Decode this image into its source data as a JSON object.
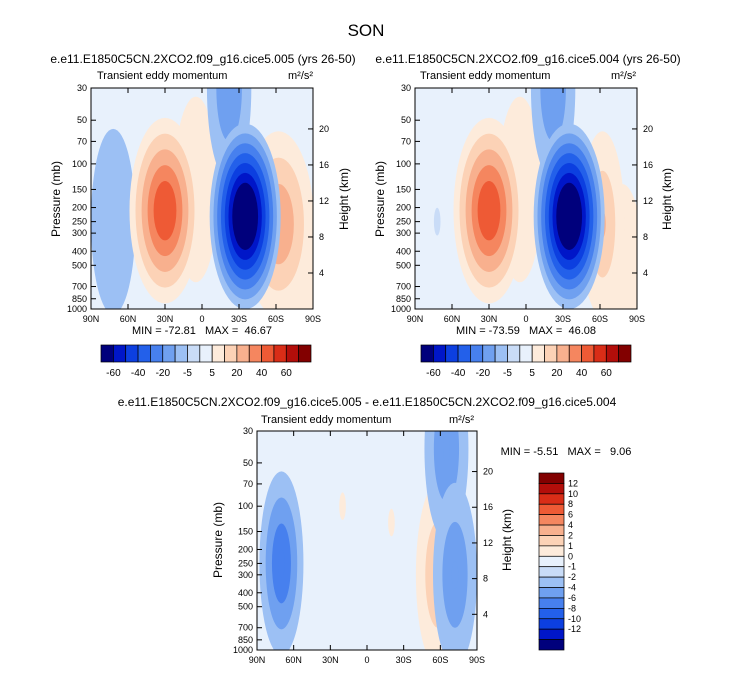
{
  "figure": {
    "season": "SON"
  },
  "chart_data": [
    {
      "type": "heatmap",
      "panel_title": "e.e11.E1850C5CN.2XCO2.f09_g16.cice5.005 (yrs 26-50)",
      "left_label": "Transient eddy momentum",
      "units": "m²/s²",
      "ylabel": "Pressure (mb)",
      "ylabel_right": "Height (km)",
      "xticks": [
        "90N",
        "60N",
        "30N",
        "0",
        "30S",
        "60S",
        "90S"
      ],
      "yticks": [
        "30",
        "50",
        "70",
        "100",
        "150",
        "200",
        "250",
        "300",
        "400",
        "500",
        "700",
        "850",
        "1000"
      ],
      "height_ticks": [
        "20",
        "16",
        "12",
        "8",
        "4"
      ],
      "stats": "MIN = -72.81   MAX =  46.67",
      "min": -72.81,
      "max": 46.67,
      "features": [
        {
          "lat": 30,
          "p": 210,
          "value": 44
        },
        {
          "lat": 5,
          "p": 150,
          "value": 8
        },
        {
          "lat": -35,
          "p": 230,
          "value": -72
        },
        {
          "lat": -62,
          "p": 260,
          "value": 22
        },
        {
          "lat": -78,
          "p": 600,
          "value": 6
        },
        {
          "lat": 72,
          "p": 250,
          "value": -8
        },
        {
          "lat": -22,
          "p": 30,
          "value": -20
        }
      ]
    },
    {
      "type": "heatmap",
      "panel_title": "e.e11.E1850C5CN.2XCO2.f09_g16.cice5.004 (yrs 26-50)",
      "left_label": "Transient eddy momentum",
      "units": "m²/s²",
      "ylabel": "Pressure (mb)",
      "ylabel_right": "Height (km)",
      "xticks": [
        "90N",
        "60N",
        "30N",
        "0",
        "30S",
        "60S",
        "90S"
      ],
      "yticks": [
        "30",
        "50",
        "70",
        "100",
        "150",
        "200",
        "250",
        "300",
        "400",
        "500",
        "700",
        "850",
        "1000"
      ],
      "height_ticks": [
        "20",
        "16",
        "12",
        "8",
        "4"
      ],
      "stats": "MIN = -73.59   MAX =  46.08",
      "min": -73.59,
      "max": 46.08,
      "features": [
        {
          "lat": 30,
          "p": 210,
          "value": 44
        },
        {
          "lat": 5,
          "p": 150,
          "value": 8
        },
        {
          "lat": -35,
          "p": 230,
          "value": -73
        },
        {
          "lat": -62,
          "p": 260,
          "value": 20
        },
        {
          "lat": -78,
          "p": 600,
          "value": 6
        },
        {
          "lat": 72,
          "p": 250,
          "value": -2
        },
        {
          "lat": -22,
          "p": 30,
          "value": -20
        }
      ]
    },
    {
      "type": "heatmap",
      "panel_title": "e.e11.E1850C5CN.2XCO2.f09_g16.cice5.005 - e.e11.E1850C5CN.2XCO2.f09_g16.cice5.004",
      "left_label": "Transient eddy momentum",
      "units": "m²/s²",
      "ylabel": "Pressure (mb)",
      "ylabel_right": "Height (km)",
      "xticks": [
        "90N",
        "60N",
        "30N",
        "0",
        "30S",
        "60S",
        "90S"
      ],
      "yticks": [
        "30",
        "50",
        "70",
        "100",
        "150",
        "200",
        "250",
        "300",
        "400",
        "500",
        "700",
        "850",
        "1000"
      ],
      "height_ticks": [
        "20",
        "16",
        "12",
        "8",
        "4"
      ],
      "stats": "MIN = -5.51   MAX =   9.06",
      "min": -5.51,
      "max": 9.06,
      "features": [
        {
          "lat": 70,
          "p": 250,
          "value": -5
        },
        {
          "lat": -72,
          "p": 300,
          "value": -4
        },
        {
          "lat": -58,
          "p": 300,
          "value": 3
        },
        {
          "lat": -65,
          "p": 40,
          "value": -3
        },
        {
          "lat": 20,
          "p": 100,
          "value": 1
        },
        {
          "lat": -20,
          "p": 130,
          "value": 1
        }
      ]
    }
  ],
  "colorbars": {
    "top": {
      "levels": [
        -70,
        -60,
        -50,
        -40,
        -30,
        -20,
        -10,
        -5,
        0,
        5,
        10,
        20,
        30,
        40,
        50,
        60,
        70
      ],
      "labels": [
        "-60",
        "-40",
        "-20",
        "-5",
        "5",
        "20",
        "40",
        "60"
      ]
    },
    "bottom": {
      "levels": [
        -14,
        -12,
        -10,
        -8,
        -6,
        -4,
        -2,
        -1,
        0,
        1,
        2,
        4,
        6,
        8,
        10,
        12,
        14
      ],
      "labels": [
        "12",
        "10",
        "8",
        "6",
        "4",
        "2",
        "1",
        "0",
        "-1",
        "-2",
        "-4",
        "-6",
        "-8",
        "-10",
        "-12"
      ]
    }
  },
  "palette": [
    "#00007c",
    "#0016c8",
    "#0c3fe0",
    "#2360ea",
    "#4780ee",
    "#6fa0f0",
    "#9cc0f4",
    "#c9dcf7",
    "#e8f1fc",
    "#fdebdb",
    "#fcd2b6",
    "#f8b08e",
    "#f5865f",
    "#ee5a35",
    "#d92d17",
    "#b30e0a",
    "#820000"
  ]
}
